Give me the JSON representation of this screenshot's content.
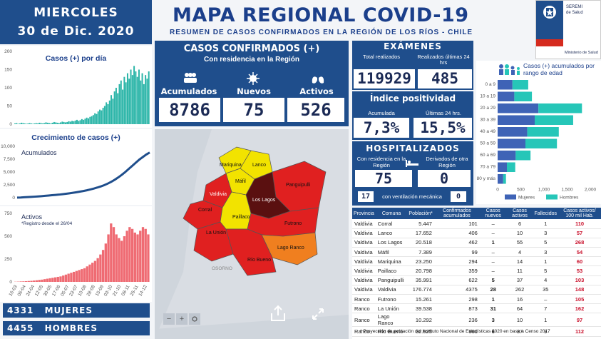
{
  "header": {
    "day": "MIERCOLES",
    "date": "30 de Dic. 2020",
    "title": "MAPA REGIONAL COVID-19",
    "subtitle": "RESUMEN DE CASOS CONFIRMADOS EN LA REGIÓN DE LOS RÍOS - CHILE",
    "logo_top": "SEREMI",
    "logo_sub": "de Salud",
    "logo_bottom": "Ministerio de Salud"
  },
  "confirmed": {
    "title": "CASOS CONFIRMADOS (+)",
    "subtitle": "Con residencia en la Región",
    "acumulados_label": "Acumulados",
    "acumulados": "8786",
    "nuevos_label": "Nuevos",
    "nuevos": "75",
    "activos_label": "Activos",
    "activos": "526"
  },
  "exams": {
    "title": "EXÁMENES",
    "total_label": "Total realizados",
    "total": "119929",
    "last24_label": "Realizados últimas 24 hrs",
    "last24": "485"
  },
  "positivity": {
    "title": "Índice positividad",
    "acum_label": "Acumulada",
    "acum": "7,3%",
    "last24_label": "Últimas 24 hrs.",
    "last24": "15,5%"
  },
  "hospital": {
    "title": "HOSPITALIZADOS",
    "resident_label": "Con residencia en la Región",
    "resident": "75",
    "derived_label": "Derivados de otra Región",
    "derived": "0",
    "ventilation_count": "17",
    "ventilation_label": "con ventilación mecánica",
    "ventilation_derived": "0"
  },
  "gender": {
    "mujeres_count": "4331",
    "mujeres_label": "MUJERES",
    "hombres_count": "4455",
    "hombres_label": "HOMBRES"
  },
  "daily_chart_title": "Casos (+) por día",
  "cumulative_chart_title": "Crecimiento de casos (+)",
  "cumulative_label": "Acumulados",
  "active_label": "Activos",
  "active_note": "*Registro desde el 26/04",
  "age_chart_title": "Casos (+) acumulados por rango de edad",
  "map": {
    "labels": [
      "Mariquina",
      "Lanco",
      "Máfil",
      "Valdivia",
      "Los Lagos",
      "Panguipulli",
      "Corral",
      "Paillaco",
      "La Unión",
      "Futrono",
      "Lago Ranco",
      "Río Bueno"
    ],
    "osorno": "OSORNO",
    "zoom_minus": "−",
    "zoom_plus": "+"
  },
  "table": {
    "headers": [
      "Provincia",
      "Comuna",
      "Población*",
      "Confirmados acumulados",
      "Casos nuevos",
      "Casos activos",
      "Fallecidos",
      "Casos activos/ 100 mil Hab."
    ],
    "rows": [
      [
        "Valdivia",
        "Corral",
        "5.447",
        "101",
        "–",
        "6",
        "1",
        "110"
      ],
      [
        "Valdivia",
        "Lanco",
        "17.652",
        "406",
        "–",
        "10",
        "3",
        "57"
      ],
      [
        "Valdivia",
        "Los Lagos",
        "20.518",
        "462",
        "1",
        "55",
        "5",
        "268"
      ],
      [
        "Valdivia",
        "Máfil",
        "7.389",
        "99",
        "–",
        "4",
        "3",
        "54"
      ],
      [
        "Valdivia",
        "Mariquina",
        "23.250",
        "294",
        "–",
        "14",
        "1",
        "60"
      ],
      [
        "Valdivia",
        "Paillaco",
        "20.798",
        "359",
        "–",
        "11",
        "5",
        "53"
      ],
      [
        "Valdivia",
        "Panguipulli",
        "35.991",
        "622",
        "5",
        "37",
        "4",
        "103"
      ],
      [
        "Valdivia",
        "Valdivia",
        "176.774",
        "4375",
        "28",
        "262",
        "35",
        "148"
      ],
      [
        "Ranco",
        "Futrono",
        "15.261",
        "298",
        "1",
        "16",
        "–",
        "105"
      ],
      [
        "Ranco",
        "La Unión",
        "39.538",
        "873",
        "31",
        "64",
        "7",
        "162"
      ],
      [
        "Ranco",
        "Lago Ranco",
        "10.292",
        "236",
        "3",
        "10",
        "1",
        "97"
      ],
      [
        "Ranco",
        "Río Bueno",
        "32.925",
        "661",
        "6",
        "37",
        "9",
        "112"
      ]
    ]
  },
  "footnote": "* Proyección de población del Instituto Nacional de Estadísticas 2020 en base a Censo 2017",
  "chart_data": [
    {
      "type": "bar",
      "title": "Casos (+) por día",
      "ylim": [
        0,
        200
      ],
      "yticks": [
        "200",
        "150",
        "100",
        "50",
        "0"
      ],
      "color": "#2bb5a8",
      "values": [
        2,
        3,
        1,
        2,
        4,
        3,
        2,
        1,
        2,
        3,
        2,
        1,
        2,
        3,
        2,
        4,
        3,
        2,
        3,
        5,
        4,
        3,
        2,
        4,
        6,
        5,
        4,
        3,
        5,
        7,
        6,
        5,
        6,
        8,
        7,
        9,
        8,
        10,
        12,
        9,
        11,
        14,
        12,
        15,
        18,
        16,
        20,
        22,
        25,
        30,
        28,
        35,
        40,
        38,
        45,
        50,
        60,
        55,
        65,
        80,
        70,
        90,
        100,
        85,
        110,
        120,
        95,
        130,
        115,
        140,
        125,
        150,
        135,
        160,
        145,
        130,
        150,
        120,
        140,
        110,
        135,
        125,
        145
      ]
    },
    {
      "type": "line",
      "title": "Crecimiento de casos (+)",
      "ylim": [
        0,
        10000
      ],
      "yticks": [
        "10,000",
        "7,500",
        "5,000",
        "2,500",
        "0"
      ],
      "color": "#1f4e8c",
      "values": [
        20,
        40,
        80,
        120,
        160,
        200,
        250,
        300,
        360,
        420,
        480,
        540,
        600,
        680,
        760,
        850,
        950,
        1060,
        1180,
        1300,
        1440,
        1600,
        1780,
        1980,
        2200,
        2450,
        2750,
        3100,
        3500,
        3950,
        4450,
        5000,
        5600,
        6200,
        6800,
        7400,
        7900,
        8400,
        8786
      ]
    },
    {
      "type": "bar",
      "title": "Activos",
      "ylim": [
        0,
        750
      ],
      "yticks": [
        "750",
        "500",
        "250",
        "0"
      ],
      "xticks": [
        "16-03",
        "06-04",
        "24-04",
        "12-05",
        "30-05",
        "17-06",
        "05-07",
        "23-07",
        "10-08",
        "28-08",
        "15-09",
        "03-10",
        "21-10",
        "08-11",
        "26-11",
        "14-12"
      ],
      "color": "#ef6b73",
      "values": [
        2,
        3,
        5,
        6,
        8,
        10,
        12,
        15,
        18,
        22,
        25,
        30,
        35,
        40,
        45,
        50,
        55,
        60,
        70,
        80,
        90,
        100,
        110,
        120,
        130,
        140,
        150,
        170,
        190,
        210,
        230,
        260,
        300,
        350,
        420,
        520,
        640,
        600,
        520,
        480,
        450,
        500,
        560,
        600,
        580,
        540,
        520,
        560,
        600,
        580,
        520
      ]
    },
    {
      "type": "bar",
      "title": "Casos (+) acumulados por rango de edad",
      "orientation": "horizontal",
      "categories": [
        "0 a 9",
        "10 a 19",
        "20 a 29",
        "30 a 39",
        "40 a 49",
        "50 a 59",
        "60 a 69",
        "70 a 79",
        "80 y más"
      ],
      "xlim": [
        0,
        2000
      ],
      "xticks": [
        "0",
        "500",
        "1,000",
        "1,500",
        "2,000"
      ],
      "series": [
        {
          "name": "Mujeres",
          "color": "#3f63b6",
          "values": [
            320,
            360,
            880,
            800,
            640,
            600,
            390,
            200,
            120
          ]
        },
        {
          "name": "Hombres",
          "color": "#26c6b8",
          "values": [
            340,
            380,
            940,
            830,
            680,
            680,
            320,
            180,
            60
          ]
        }
      ]
    }
  ]
}
